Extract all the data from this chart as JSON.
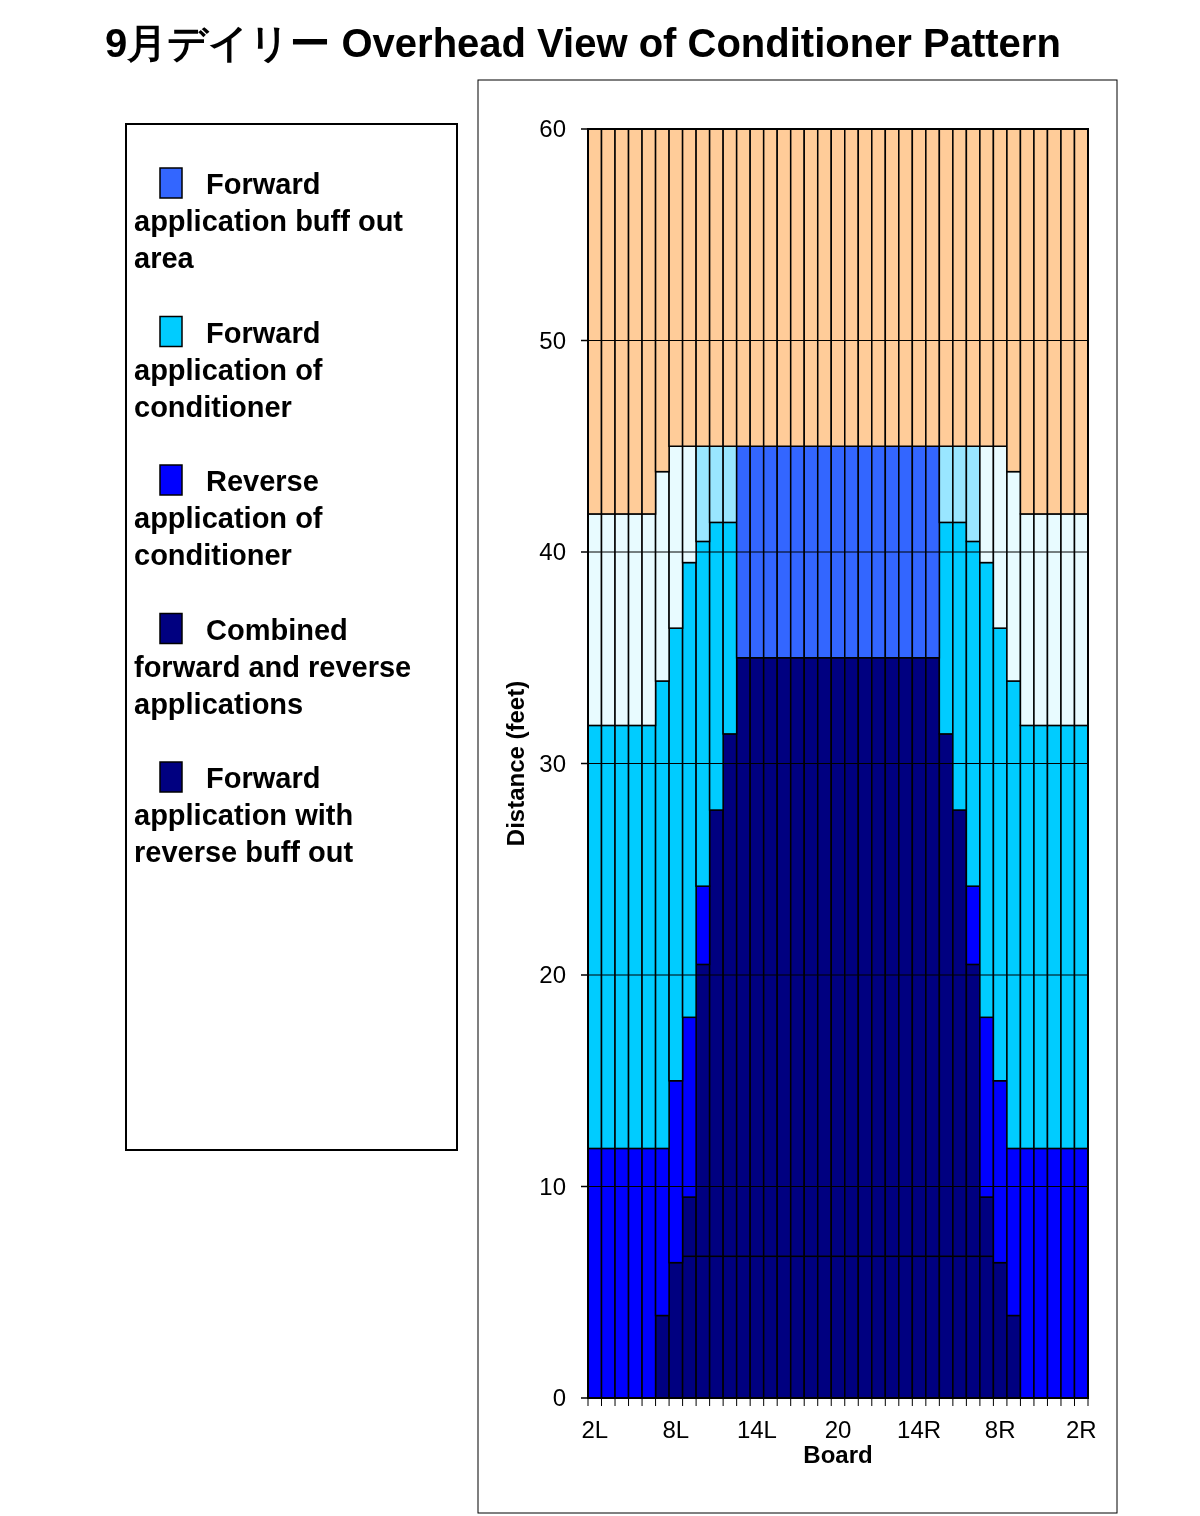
{
  "chart_data": {
    "type": "bar",
    "stacked": true,
    "title": "9月デイリー Overhead View of Conditioner Pattern",
    "xlabel": "Board",
    "ylabel": "Distance (feet)",
    "categories": [
      "2L",
      null,
      null,
      null,
      null,
      null,
      "8L",
      null,
      null,
      null,
      null,
      null,
      "14L",
      null,
      null,
      null,
      null,
      null,
      "20",
      null,
      null,
      null,
      null,
      null,
      "14R",
      null,
      null,
      null,
      null,
      null,
      "8R",
      null,
      null,
      null,
      null,
      null,
      "2R"
    ],
    "ylim": [
      0,
      60
    ],
    "yticks": [
      0,
      10,
      20,
      30,
      40,
      50,
      60
    ],
    "grid": "y",
    "legend": "left",
    "series": [
      {
        "name": "Forward application with reverse buff out",
        "color": "#000080",
        "values": [
          0,
          0,
          0,
          0,
          0,
          3.9,
          6.4,
          6.7,
          6.7,
          6.7,
          6.7,
          6.7,
          6.7,
          6.7,
          6.7,
          6.7,
          6.7,
          6.7,
          6.7,
          6.7,
          6.7,
          6.7,
          6.7,
          6.7,
          6.7,
          6.7,
          6.7,
          6.7,
          6.7,
          6.7,
          6.4,
          3.9,
          0,
          0,
          0,
          0,
          0
        ]
      },
      {
        "name": "Combined forward and reverse applications",
        "color": "#000080",
        "values": [
          0,
          0,
          0,
          0,
          0,
          0,
          0,
          2.8,
          13.8,
          21.1,
          24.7,
          28.3,
          28.3,
          28.3,
          28.3,
          28.3,
          28.3,
          28.3,
          28.3,
          28.3,
          28.3,
          28.3,
          28.3,
          28.3,
          28.3,
          28.3,
          24.7,
          21.1,
          13.8,
          2.8,
          0,
          0,
          0,
          0,
          0,
          0,
          0
        ]
      },
      {
        "name": "Reverse application of conditioner",
        "color": "#0000ff",
        "values": [
          11.8,
          11.8,
          11.8,
          11.8,
          11.8,
          7.9,
          8.6,
          8.5,
          3.7,
          0,
          0,
          0,
          0,
          0,
          0,
          0,
          0,
          0,
          0,
          0,
          0,
          0,
          0,
          0,
          0,
          0,
          0,
          0,
          3.7,
          8.5,
          8.6,
          7.9,
          11.8,
          11.8,
          11.8,
          11.8,
          11.8
        ]
      },
      {
        "name": "Forward application of conditioner",
        "color": "#00ccff",
        "values": [
          20,
          20,
          20,
          20,
          20,
          22.1,
          21.4,
          21.5,
          16.3,
          13.6,
          10,
          0,
          0,
          0,
          0,
          0,
          0,
          0,
          0,
          0,
          0,
          0,
          0,
          0,
          0,
          0,
          10,
          13.6,
          16.3,
          21.5,
          21.4,
          22.1,
          20,
          20,
          20,
          20,
          20
        ]
      },
      {
        "name": "Forward application buff out area",
        "colors": [
          "#e8fbff",
          "#e8fbff",
          "#e8fbff",
          "#e8fbff",
          "#e8fbff",
          "#e8fbff",
          "#e8fbff",
          "#e8fbff",
          "#99e6ff",
          "#99e6ff",
          "#99e6ff",
          "#3366ff",
          "#3366ff",
          "#3366ff",
          "#3366ff",
          "#3366ff",
          "#3366ff",
          "#3366ff",
          "#3366ff",
          "#3366ff",
          "#3366ff",
          "#3366ff",
          "#3366ff",
          "#3366ff",
          "#3366ff",
          "#3366ff",
          "#99e6ff",
          "#99e6ff",
          "#99e6ff",
          "#e8fbff",
          "#e8fbff",
          "#e8fbff",
          "#e8fbff",
          "#e8fbff",
          "#e8fbff",
          "#e8fbff",
          "#e8fbff"
        ],
        "values": [
          10,
          10,
          10,
          10,
          10,
          9.9,
          8.6,
          5.5,
          4.5,
          3.6,
          3.6,
          10,
          10,
          10,
          10,
          10,
          10,
          10,
          10,
          10,
          10,
          10,
          10,
          10,
          10,
          10,
          3.6,
          3.6,
          4.5,
          5.5,
          8.6,
          9.9,
          10,
          10,
          10,
          10,
          10
        ]
      },
      {
        "color": "#ffcc99",
        "values": [
          18.2,
          18.2,
          18.2,
          18.2,
          18.2,
          16.2,
          15,
          15,
          15,
          15,
          15,
          15,
          15,
          15,
          15,
          15,
          15,
          15,
          15,
          15,
          15,
          15,
          15,
          15,
          15,
          15,
          15,
          15,
          15,
          15,
          15,
          16.2,
          18.2,
          18.2,
          18.2,
          18.2,
          18.2
        ]
      }
    ]
  }
}
